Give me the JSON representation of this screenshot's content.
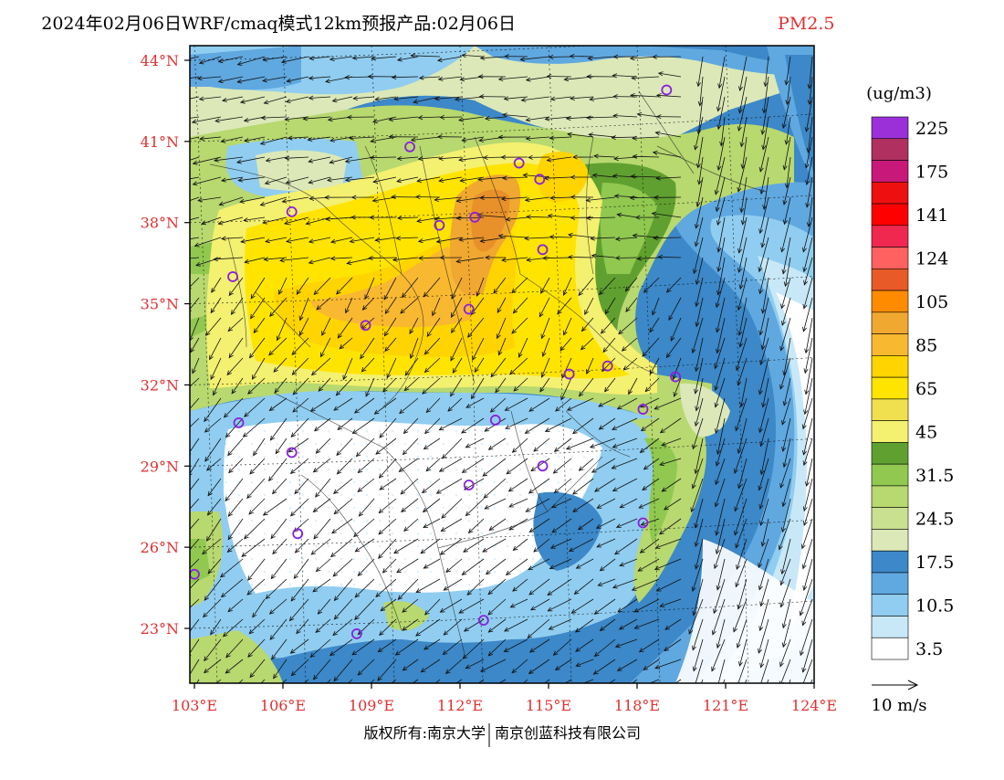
{
  "header": {
    "title": "2024年02月06日WRF/cmaq模式12km预报产品:02月06日",
    "species": "PM2.5"
  },
  "axes": {
    "lat_labels": [
      "44°N",
      "41°N",
      "38°N",
      "35°N",
      "32°N",
      "29°N",
      "26°N",
      "23°N"
    ],
    "lat_values": [
      44,
      41,
      38,
      35,
      32,
      29,
      26,
      23
    ],
    "lon_labels": [
      "103°E",
      "106°E",
      "109°E",
      "112°E",
      "115°E",
      "118°E",
      "121°E",
      "124°E"
    ],
    "lon_values": [
      103,
      106,
      109,
      112,
      115,
      118,
      121,
      124
    ],
    "lon_range": [
      103,
      124
    ],
    "lat_range": [
      21,
      44.5
    ],
    "label_color": "#e03030"
  },
  "legend": {
    "unit": "(ug/m3)",
    "levels": [
      {
        "label": "225",
        "color": "#9b30d8"
      },
      {
        "label": "",
        "color": "#b03060"
      },
      {
        "label": "175",
        "color": "#c8187a"
      },
      {
        "label": "",
        "color": "#ee1010"
      },
      {
        "label": "141",
        "color": "#ff0000"
      },
      {
        "label": "",
        "color": "#f02850"
      },
      {
        "label": "124",
        "color": "#ff6060"
      },
      {
        "label": "",
        "color": "#e85a28"
      },
      {
        "label": "105",
        "color": "#ff8c00"
      },
      {
        "label": "",
        "color": "#f0a830"
      },
      {
        "label": "85",
        "color": "#f8b830"
      },
      {
        "label": "",
        "color": "#ffd400"
      },
      {
        "label": "65",
        "color": "#ffe400"
      },
      {
        "label": "",
        "color": "#f0e050"
      },
      {
        "label": "45",
        "color": "#f4f070"
      },
      {
        "label": "",
        "color": "#60a030"
      },
      {
        "label": "31.5",
        "color": "#90c850"
      },
      {
        "label": "",
        "color": "#b8d870"
      },
      {
        "label": "24.5",
        "color": "#c8e090"
      },
      {
        "label": "",
        "color": "#dce8b8"
      },
      {
        "label": "17.5",
        "color": "#3c88c8"
      },
      {
        "label": "",
        "color": "#60a8e0"
      },
      {
        "label": "10.5",
        "color": "#90cdf0"
      },
      {
        "label": "",
        "color": "#c8e8f8"
      },
      {
        "label": "3.5",
        "color": "#ffffff"
      }
    ],
    "wind_ref": "10 m/s"
  },
  "cities": [
    {
      "lon": 119.0,
      "lat": 42.9
    },
    {
      "lon": 110.3,
      "lat": 40.8
    },
    {
      "lon": 114.0,
      "lat": 40.2
    },
    {
      "lon": 114.7,
      "lat": 39.6
    },
    {
      "lon": 106.3,
      "lat": 38.4
    },
    {
      "lon": 112.5,
      "lat": 38.2
    },
    {
      "lon": 111.3,
      "lat": 37.9
    },
    {
      "lon": 114.8,
      "lat": 37.0
    },
    {
      "lon": 104.3,
      "lat": 36.0
    },
    {
      "lon": 112.3,
      "lat": 34.8
    },
    {
      "lon": 108.8,
      "lat": 34.2
    },
    {
      "lon": 117.0,
      "lat": 32.7
    },
    {
      "lon": 115.7,
      "lat": 32.4
    },
    {
      "lon": 119.3,
      "lat": 32.3
    },
    {
      "lon": 118.2,
      "lat": 31.1
    },
    {
      "lon": 104.5,
      "lat": 30.6
    },
    {
      "lon": 113.2,
      "lat": 30.7
    },
    {
      "lon": 106.3,
      "lat": 29.5
    },
    {
      "lon": 114.8,
      "lat": 29.0
    },
    {
      "lon": 112.3,
      "lat": 28.3
    },
    {
      "lon": 106.5,
      "lat": 26.5
    },
    {
      "lon": 118.2,
      "lat": 26.9
    },
    {
      "lon": 103.0,
      "lat": 25.0
    },
    {
      "lon": 112.8,
      "lat": 23.3
    },
    {
      "lon": 108.5,
      "lat": 22.8
    }
  ],
  "footer": {
    "left": "版权所有:南京大学",
    "right": "南京创蓝科技有限公司"
  }
}
